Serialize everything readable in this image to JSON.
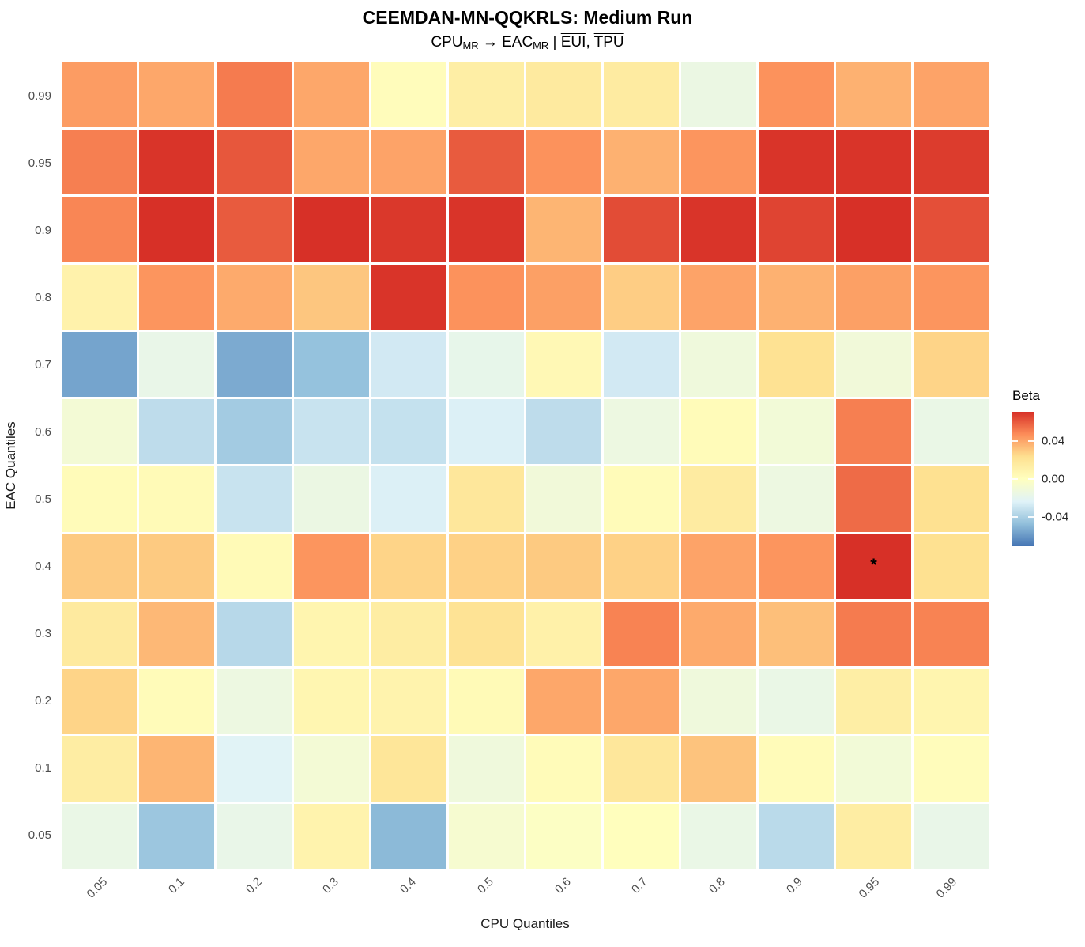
{
  "chart_data": {
    "type": "heatmap",
    "title": "CEEMDAN-MN-QQKRLS: Medium Run",
    "subtitle_parts": [
      {
        "t": "CPU"
      },
      {
        "t": "MR",
        "style": "sub"
      },
      {
        "t": " → EAC"
      },
      {
        "t": "MR",
        "style": "sub"
      },
      {
        "t": " | "
      },
      {
        "t": "EUI",
        "style": "overline"
      },
      {
        "t": ", "
      },
      {
        "t": "TPU",
        "style": "overline"
      }
    ],
    "xlabel": "CPU Quantiles",
    "ylabel": "EAC Quantiles",
    "x_categories": [
      "0.05",
      "0.1",
      "0.2",
      "0.3",
      "0.4",
      "0.5",
      "0.6",
      "0.7",
      "0.8",
      "0.9",
      "0.95",
      "0.99"
    ],
    "y_categories_top_to_bottom": [
      "0.99",
      "0.95",
      "0.9",
      "0.8",
      "0.7",
      "0.6",
      "0.5",
      "0.4",
      "0.3",
      "0.2",
      "0.1",
      "0.05"
    ],
    "values_rows_top_to_bottom": [
      [
        0.043,
        0.04,
        0.052,
        0.04,
        0.002,
        0.013,
        0.016,
        0.015,
        -0.015,
        0.046,
        0.037,
        0.041
      ],
      [
        0.051,
        0.07,
        0.061,
        0.04,
        0.041,
        0.06,
        0.046,
        0.037,
        0.045,
        0.07,
        0.07,
        0.068
      ],
      [
        0.049,
        0.071,
        0.06,
        0.071,
        0.069,
        0.07,
        0.036,
        0.064,
        0.07,
        0.066,
        0.071,
        0.063
      ],
      [
        0.01,
        0.045,
        0.039,
        0.031,
        0.07,
        0.046,
        0.042,
        0.029,
        0.041,
        0.037,
        0.042,
        0.045
      ],
      [
        -0.056,
        -0.017,
        -0.054,
        -0.046,
        -0.028,
        -0.018,
        0.005,
        -0.028,
        -0.012,
        0.022,
        -0.011,
        0.027
      ],
      [
        -0.009,
        -0.034,
        -0.042,
        -0.031,
        -0.032,
        -0.025,
        -0.034,
        -0.014,
        0.003,
        -0.01,
        0.051,
        -0.016
      ],
      [
        0.003,
        0.004,
        -0.031,
        -0.015,
        -0.025,
        0.018,
        -0.011,
        0.003,
        0.015,
        -0.014,
        0.056,
        0.023
      ],
      [
        0.03,
        0.03,
        0.004,
        0.045,
        0.027,
        0.028,
        0.03,
        0.028,
        0.041,
        0.045,
        0.071,
        0.023
      ],
      [
        0.016,
        0.035,
        -0.036,
        0.008,
        0.014,
        0.021,
        0.011,
        0.05,
        0.039,
        0.033,
        0.052,
        0.05
      ],
      [
        0.027,
        0.003,
        -0.014,
        0.007,
        0.009,
        0.004,
        0.04,
        0.04,
        -0.012,
        -0.016,
        0.013,
        0.008
      ],
      [
        0.014,
        0.036,
        -0.023,
        -0.009,
        0.019,
        -0.012,
        0.003,
        0.018,
        0.032,
        0.003,
        -0.01,
        0.002
      ],
      [
        -0.016,
        -0.044,
        -0.017,
        0.009,
        -0.049,
        -0.007,
        -0.002,
        0.001,
        -0.016,
        -0.035,
        0.014,
        -0.017
      ]
    ],
    "significance_markers": [
      {
        "x": "0.95",
        "y": "0.4",
        "label": "*"
      }
    ],
    "legend": {
      "title": "Beta",
      "position": "right",
      "domain": [
        -0.071,
        0.071
      ],
      "tick_labels": [
        "0.04",
        "0.00",
        "-0.04"
      ],
      "palette_top_to_bottom": [
        "#d73027",
        "#fc8d59",
        "#fee090",
        "#ffffbf",
        "#e0f3f8",
        "#91bfdb",
        "#4575b4"
      ]
    },
    "grid": "off"
  }
}
